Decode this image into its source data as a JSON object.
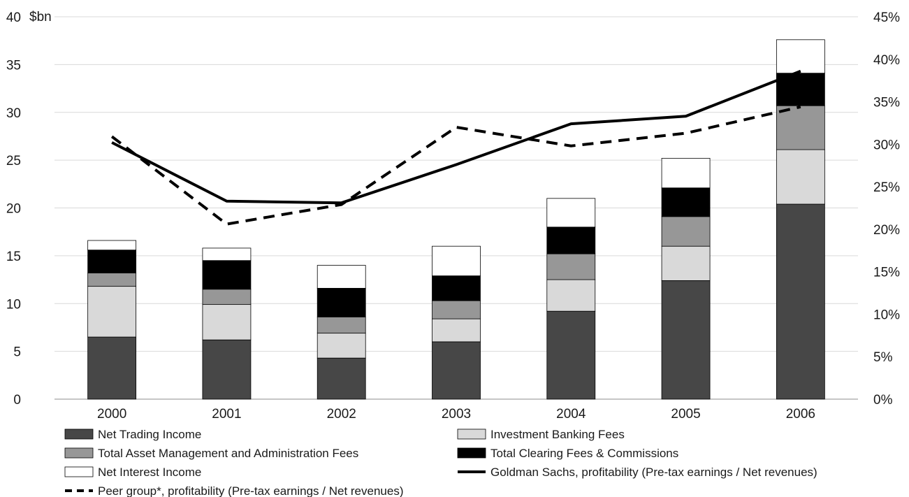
{
  "chart_data": {
    "type": "bar",
    "stacked": true,
    "categories": [
      "2000",
      "2001",
      "2002",
      "2003",
      "2004",
      "2005",
      "2006"
    ],
    "y_unit_label": "$bn",
    "ylim": [
      0,
      40
    ],
    "yticks": [
      "0",
      "5",
      "10",
      "15",
      "20",
      "25",
      "30",
      "35",
      "40"
    ],
    "y2lim": [
      0,
      45
    ],
    "y2ticks": [
      "0%",
      "5%",
      "10%",
      "15%",
      "20%",
      "25%",
      "30%",
      "35%",
      "40%",
      "45%"
    ],
    "grid": "horizontal",
    "legend_position": "bottom",
    "series": [
      {
        "name": "Net Trading Income",
        "kind": "bar",
        "color": "#474747",
        "values": [
          6.5,
          6.2,
          4.3,
          6.0,
          9.2,
          12.4,
          20.4
        ]
      },
      {
        "name": "Investment Banking Fees",
        "kind": "bar",
        "color": "#d9d9d9",
        "values": [
          5.3,
          3.7,
          2.6,
          2.4,
          3.3,
          3.6,
          5.7
        ]
      },
      {
        "name": "Total Asset Management and Administration Fees",
        "kind": "bar",
        "color": "#979797",
        "values": [
          1.4,
          1.6,
          1.7,
          1.9,
          2.7,
          3.1,
          4.6
        ]
      },
      {
        "name": "Total Clearing Fees & Commissions",
        "kind": "bar",
        "color": "#000000",
        "values": [
          2.4,
          3.0,
          3.0,
          2.6,
          2.8,
          3.0,
          3.4
        ]
      },
      {
        "name": "Net Interest Income",
        "kind": "bar",
        "color": "#ffffff",
        "values": [
          1.0,
          1.3,
          2.4,
          3.1,
          3.0,
          3.1,
          3.5
        ]
      },
      {
        "name": "Goldman Sachs, profitability (Pre-tax earnings / Net revenues)",
        "kind": "line",
        "axis": "y2",
        "style": "solid",
        "color": "#000000",
        "values": [
          30.2,
          23.3,
          23.1,
          27.6,
          32.4,
          33.3,
          38.6
        ]
      },
      {
        "name": "Peer group*, profitability (Pre-tax earnings / Net revenues)",
        "kind": "line",
        "axis": "y2",
        "style": "dashed",
        "color": "#000000",
        "values": [
          30.9,
          20.6,
          22.9,
          32.0,
          29.8,
          31.3,
          34.4
        ]
      }
    ]
  }
}
